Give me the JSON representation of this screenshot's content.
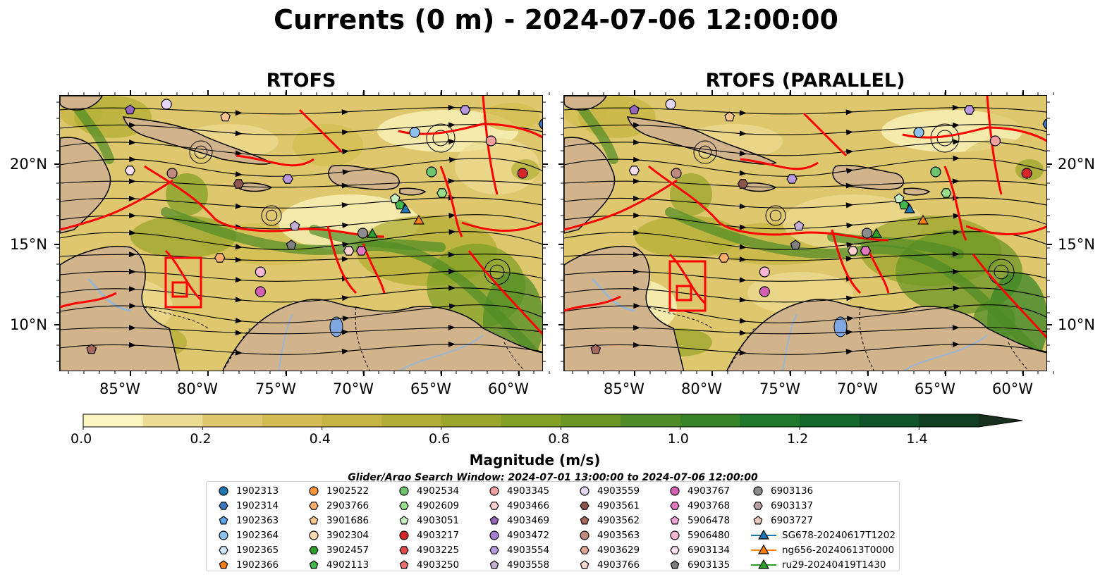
{
  "title": "Currents (0 m) - 2024-07-06 12:00:00",
  "panels": [
    {
      "title": "RTOFS"
    },
    {
      "title": "RTOFS (PARALLEL)"
    }
  ],
  "lat_labels": [
    "20°N",
    "15°N",
    "10°N"
  ],
  "lon_labels": [
    "85°W",
    "80°W",
    "75°W",
    "70°W",
    "65°W",
    "60°W"
  ],
  "colorbar": {
    "label": "Magnitude (m/s)",
    "tick_labels": [
      "0.0",
      "0.2",
      "0.4",
      "0.6",
      "0.8",
      "1.0",
      "1.2",
      "1.4"
    ],
    "colors": [
      "#fbf5c0",
      "#ecdb93",
      "#dec76c",
      "#d3bd52",
      "#c6b543",
      "#b2ad34",
      "#9aa62b",
      "#82a024",
      "#6a9624",
      "#4f8c26",
      "#378427",
      "#1f782b",
      "#14682b",
      "#10552a",
      "#123f24",
      "#16301d"
    ],
    "extend": "max"
  },
  "map_colors": {
    "land": "#d2b48c",
    "boundary": "#ff0000",
    "lake": "#7fa8e3",
    "river": "#99b6d6"
  },
  "search_window": "Glider/Argo Search Window: 2024-07-01 13:00:00 to 2024-07-06 12:00:00",
  "legend": [
    {
      "label": "1902313",
      "marker": "circle",
      "color": "#1f77b4"
    },
    {
      "label": "1902314",
      "marker": "hexagon",
      "color": "#3a78c2"
    },
    {
      "label": "1902363",
      "marker": "pentagon",
      "color": "#5ca3e6"
    },
    {
      "label": "1902364",
      "marker": "circle",
      "color": "#8cc1ee"
    },
    {
      "label": "1902365",
      "marker": "hexagon",
      "color": "#d0e7f9"
    },
    {
      "label": "1902366",
      "marker": "pentagon",
      "color": "#ff7f0e"
    },
    {
      "label": "1902522",
      "marker": "circle",
      "color": "#ff9537"
    },
    {
      "label": "2903766",
      "marker": "hexagon",
      "color": "#ffae6b"
    },
    {
      "label": "3901686",
      "marker": "pentagon",
      "color": "#ffc58f"
    },
    {
      "label": "3902304",
      "marker": "circle",
      "color": "#ffdcb4"
    },
    {
      "label": "3902457",
      "marker": "hexagon",
      "color": "#2ca02c"
    },
    {
      "label": "4902113",
      "marker": "pentagon",
      "color": "#42b84a"
    },
    {
      "label": "4902534",
      "marker": "circle",
      "color": "#6cc56a"
    },
    {
      "label": "4902609",
      "marker": "hexagon",
      "color": "#98df8a"
    },
    {
      "label": "4903051",
      "marker": "pentagon",
      "color": "#c6f0c0"
    },
    {
      "label": "4903217",
      "marker": "circle",
      "color": "#d62728"
    },
    {
      "label": "4903225",
      "marker": "hexagon",
      "color": "#e04a4a"
    },
    {
      "label": "4903250",
      "marker": "pentagon",
      "color": "#f07070"
    },
    {
      "label": "4903345",
      "marker": "circle",
      "color": "#f2a09e"
    },
    {
      "label": "4903466",
      "marker": "hexagon",
      "color": "#fcd0cf"
    },
    {
      "label": "4903469",
      "marker": "pentagon",
      "color": "#9467bd"
    },
    {
      "label": "4903472",
      "marker": "circle",
      "color": "#a57ed0"
    },
    {
      "label": "4903554",
      "marker": "hexagon",
      "color": "#b99ade"
    },
    {
      "label": "4903558",
      "marker": "pentagon",
      "color": "#c5b0d5"
    },
    {
      "label": "4903559",
      "marker": "circle",
      "color": "#e4d6f4"
    },
    {
      "label": "4903561",
      "marker": "hexagon",
      "color": "#8c564b"
    },
    {
      "label": "4903562",
      "marker": "pentagon",
      "color": "#a8685c"
    },
    {
      "label": "4903563",
      "marker": "circle",
      "color": "#c08a7c"
    },
    {
      "label": "4903629",
      "marker": "hexagon",
      "color": "#e0a997"
    },
    {
      "label": "4903766",
      "marker": "pentagon",
      "color": "#fbd8cd"
    },
    {
      "label": "4903767",
      "marker": "circle",
      "color": "#d65fb6"
    },
    {
      "label": "4903768",
      "marker": "hexagon",
      "color": "#e377c2"
    },
    {
      "label": "5906478",
      "marker": "pentagon",
      "color": "#f0a3d9"
    },
    {
      "label": "5906480",
      "marker": "circle",
      "color": "#f7b6d2"
    },
    {
      "label": "6903134",
      "marker": "hexagon",
      "color": "#fbe0f0"
    },
    {
      "label": "6903135",
      "marker": "pentagon",
      "color": "#7f7f7f"
    },
    {
      "label": "6903136",
      "marker": "circle",
      "color": "#8c8c8c"
    },
    {
      "label": "6903137",
      "marker": "hexagon",
      "color": "#b8a0a0"
    },
    {
      "label": "6903727",
      "marker": "pentagon",
      "color": "#e8c8b8"
    },
    {
      "label": "SG678-20240617T1202",
      "marker": "triangle",
      "color": "#1f77b4"
    },
    {
      "label": "ng656-20240613T0000",
      "marker": "triangle",
      "color": "#ff7f0e"
    },
    {
      "label": "ru29-20240419T1430",
      "marker": "triangle",
      "color": "#2ca02c"
    }
  ]
}
